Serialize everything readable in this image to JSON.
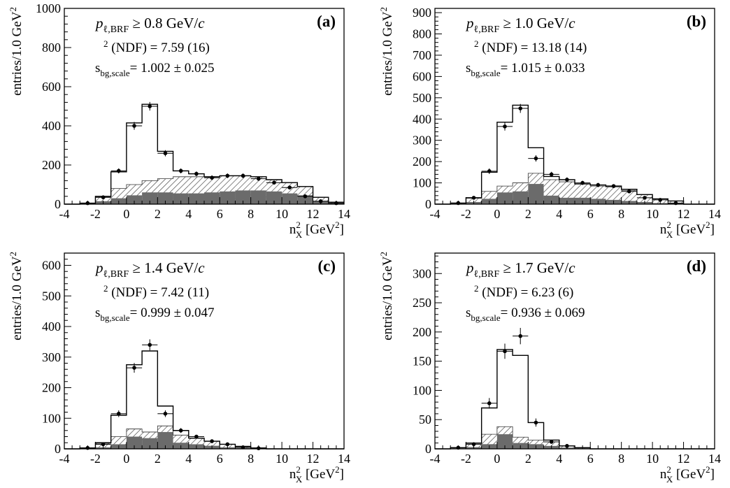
{
  "chart_data": [
    {
      "type": "bar",
      "panel_label": "(a)",
      "ylabel": "entries/1.0 GeV",
      "ylabel_sup": "2",
      "xlabel": {
        "base": "n",
        "sup": "2",
        "sub": "X",
        "unit_pre": " [GeV",
        "unit_sup": "2",
        "unit_post": "]"
      },
      "annotations": {
        "cut": {
          "p": "p",
          "sub": "ℓ,BRF",
          "rel": " ≥ ",
          "val": "0.8",
          "unit": " GeV/",
          "c": "c"
        },
        "chi2": {
          "sup": "2",
          "text": " (NDF) = 7.59 (16)"
        },
        "scale": {
          "s": "s",
          "sub": "bg,scale",
          "text": "= 1.002 ± 0.025"
        }
      },
      "xlim": [
        -4,
        14
      ],
      "ylim": [
        0,
        1000
      ],
      "xticks": [
        -4,
        -2,
        0,
        2,
        4,
        6,
        8,
        10,
        12,
        14
      ],
      "yticks": [
        0,
        200,
        400,
        600,
        800,
        1000
      ],
      "bin_edges": [
        -4,
        -3,
        -2,
        -1,
        0,
        1,
        2,
        3,
        4,
        5,
        6,
        7,
        8,
        9,
        10,
        11,
        12,
        13,
        14
      ],
      "total_fit": [
        0,
        5,
        40,
        165,
        415,
        510,
        270,
        170,
        155,
        140,
        145,
        145,
        140,
        125,
        110,
        90,
        35,
        10
      ],
      "background_total": [
        0,
        5,
        35,
        80,
        100,
        120,
        130,
        140,
        140,
        140,
        145,
        145,
        140,
        125,
        110,
        90,
        35,
        10
      ],
      "background_dark": [
        0,
        3,
        15,
        30,
        45,
        60,
        60,
        55,
        55,
        60,
        65,
        70,
        70,
        65,
        55,
        45,
        15,
        5
      ],
      "data_points": {
        "x": [
          -2.5,
          -1.5,
          -0.5,
          0.5,
          1.5,
          2.5,
          3.5,
          4.5,
          5.5,
          6.5,
          7.5,
          8.5,
          9.5,
          10.5,
          11.5,
          12.5,
          13.5
        ],
        "y": [
          5,
          35,
          170,
          400,
          500,
          260,
          170,
          155,
          135,
          145,
          145,
          130,
          110,
          85,
          40,
          15,
          5
        ],
        "yerr": [
          3,
          6,
          13,
          20,
          22,
          16,
          13,
          12,
          12,
          12,
          12,
          11,
          10,
          9,
          6,
          4,
          2
        ]
      }
    },
    {
      "type": "bar",
      "panel_label": "(b)",
      "ylabel": "entries/1.0 GeV",
      "ylabel_sup": "2",
      "xlabel": {
        "base": "n",
        "sup": "2",
        "sub": "X",
        "unit_pre": " [GeV",
        "unit_sup": "2",
        "unit_post": "]"
      },
      "annotations": {
        "cut": {
          "p": "p",
          "sub": "ℓ,BRF",
          "rel": " ≥ ",
          "val": "1.0",
          "unit": " GeV/",
          "c": "c"
        },
        "chi2": {
          "sup": "2",
          "text": " (NDF) = 13.18 (14)"
        },
        "scale": {
          "s": "s",
          "sub": "bg,scale",
          "text": "= 1.015 ± 0.033"
        }
      },
      "xlim": [
        -4,
        14
      ],
      "ylim": [
        0,
        920
      ],
      "xticks": [
        -4,
        -2,
        0,
        2,
        4,
        6,
        8,
        10,
        12,
        14
      ],
      "yticks": [
        0,
        100,
        200,
        300,
        400,
        500,
        600,
        700,
        800,
        900
      ],
      "bin_edges": [
        -4,
        -3,
        -2,
        -1,
        0,
        1,
        2,
        3,
        4,
        5,
        6,
        7,
        8,
        9,
        10,
        11,
        12,
        13,
        14
      ],
      "total_fit": [
        0,
        5,
        30,
        150,
        385,
        465,
        265,
        130,
        115,
        95,
        90,
        85,
        70,
        45,
        25,
        15,
        0,
        0
      ],
      "background_total": [
        0,
        5,
        28,
        60,
        85,
        100,
        145,
        115,
        105,
        95,
        85,
        80,
        65,
        45,
        25,
        15,
        0,
        0
      ],
      "background_dark": [
        0,
        3,
        10,
        25,
        55,
        60,
        95,
        40,
        30,
        30,
        25,
        20,
        15,
        10,
        5,
        3,
        0,
        0
      ],
      "data_points": {
        "x": [
          -2.5,
          -1.5,
          -0.5,
          0.5,
          1.5,
          2.5,
          3.5,
          4.5,
          5.5,
          6.5,
          7.5,
          8.5,
          9.5,
          10.5,
          11.5
        ],
        "y": [
          5,
          30,
          155,
          365,
          450,
          215,
          140,
          115,
          100,
          90,
          85,
          60,
          30,
          20,
          5
        ],
        "yerr": [
          3,
          6,
          13,
          19,
          21,
          15,
          12,
          11,
          10,
          10,
          9,
          8,
          6,
          5,
          3
        ]
      }
    },
    {
      "type": "bar",
      "panel_label": "(c)",
      "ylabel": "entries/1.0 GeV",
      "ylabel_sup": "2",
      "xlabel": {
        "base": "n",
        "sup": "2",
        "sub": "X",
        "unit_pre": " [GeV",
        "unit_sup": "2",
        "unit_post": "]"
      },
      "annotations": {
        "cut": {
          "p": "p",
          "sub": "ℓ,BRF",
          "rel": " ≥ ",
          "val": "1.4",
          "unit": " GeV/",
          "c": "c"
        },
        "chi2": {
          "sup": "2",
          "text": " (NDF) = 7.42 (11)"
        },
        "scale": {
          "s": "s",
          "sub": "bg,scale",
          "text": "= 0.999 ± 0.047"
        }
      },
      "xlim": [
        -4,
        14
      ],
      "ylim": [
        0,
        640
      ],
      "xticks": [
        -4,
        -2,
        0,
        2,
        4,
        6,
        8,
        10,
        12,
        14
      ],
      "yticks": [
        0,
        100,
        200,
        300,
        400,
        500,
        600
      ],
      "bin_edges": [
        -4,
        -3,
        -2,
        -1,
        0,
        1,
        2,
        3,
        4,
        5,
        6,
        7,
        8,
        9,
        10,
        11,
        12,
        13,
        14
      ],
      "total_fit": [
        0,
        3,
        20,
        110,
        275,
        320,
        140,
        60,
        35,
        25,
        15,
        8,
        3,
        0,
        0,
        0,
        0,
        0
      ],
      "background_total": [
        0,
        3,
        18,
        40,
        65,
        55,
        75,
        45,
        35,
        25,
        15,
        8,
        3,
        0,
        0,
        0,
        0,
        0
      ],
      "background_dark": [
        0,
        1,
        5,
        15,
        40,
        35,
        55,
        20,
        15,
        10,
        5,
        3,
        1,
        0,
        0,
        0,
        0,
        0
      ],
      "data_points": {
        "x": [
          -2.5,
          -1.5,
          -0.5,
          0.5,
          1.5,
          2.5,
          3.5,
          4.5,
          5.5,
          6.5,
          7.5,
          8.5
        ],
        "y": [
          3,
          15,
          115,
          265,
          340,
          115,
          60,
          40,
          25,
          15,
          5,
          2
        ],
        "yerr": [
          2,
          4,
          11,
          16,
          18,
          11,
          8,
          6,
          5,
          4,
          2,
          1
        ]
      }
    },
    {
      "type": "bar",
      "panel_label": "(d)",
      "ylabel": "entries/1.0 GeV",
      "ylabel_sup": "2",
      "xlabel": {
        "base": "n",
        "sup": "2",
        "sub": "X",
        "unit_pre": " [GeV",
        "unit_sup": "2",
        "unit_post": "]"
      },
      "annotations": {
        "cut": {
          "p": "p",
          "sub": "ℓ,BRF",
          "rel": " ≥ ",
          "val": "1.7",
          "unit": " GeV/",
          "c": "c"
        },
        "chi2": {
          "sup": "2",
          "text": " (NDF) = 6.23 (6)"
        },
        "scale": {
          "s": "s",
          "sub": "bg,scale",
          "text": "= 0.936 ± 0.069"
        }
      },
      "xlim": [
        -4,
        14
      ],
      "ylim": [
        0,
        335
      ],
      "xticks": [
        -4,
        -2,
        0,
        2,
        4,
        6,
        8,
        10,
        12,
        14
      ],
      "yticks": [
        0,
        50,
        100,
        150,
        200,
        250,
        300
      ],
      "bin_edges": [
        -4,
        -3,
        -2,
        -1,
        0,
        1,
        2,
        3,
        4,
        5,
        6,
        7,
        8,
        9,
        10,
        11,
        12,
        13,
        14
      ],
      "total_fit": [
        0,
        2,
        10,
        70,
        170,
        160,
        45,
        15,
        5,
        2,
        0,
        0,
        0,
        0,
        0,
        0,
        0,
        0
      ],
      "background_total": [
        0,
        2,
        8,
        25,
        38,
        20,
        15,
        12,
        5,
        2,
        0,
        0,
        0,
        0,
        0,
        0,
        0,
        0
      ],
      "background_dark": [
        0,
        1,
        3,
        8,
        25,
        10,
        8,
        5,
        2,
        1,
        0,
        0,
        0,
        0,
        0,
        0,
        0,
        0
      ],
      "data_points": {
        "x": [
          -2.5,
          -1.5,
          -0.5,
          0.5,
          1.5,
          2.5,
          3.5,
          4.5
        ],
        "y": [
          2,
          8,
          78,
          167,
          193,
          45,
          12,
          5
        ],
        "yerr": [
          1,
          3,
          9,
          13,
          14,
          7,
          3,
          2
        ]
      }
    }
  ]
}
